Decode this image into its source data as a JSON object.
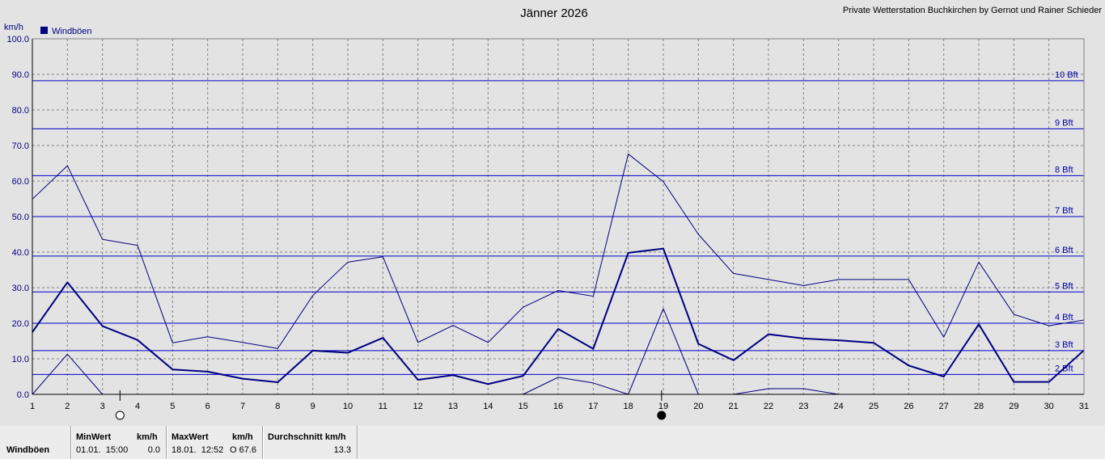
{
  "chart_data": {
    "type": "line",
    "title": "Jänner 2026",
    "subtitle": "Private Wetterstation Buchkirchen by Gernot und Rainer Schieder",
    "ylabel": "km/h",
    "xlabel": "",
    "ylim": [
      0,
      100
    ],
    "xlim": [
      1,
      31
    ],
    "grid": true,
    "legend": "top-left",
    "x": [
      1,
      2,
      3,
      4,
      5,
      6,
      7,
      8,
      9,
      10,
      11,
      12,
      13,
      14,
      15,
      16,
      17,
      18,
      19,
      20,
      21,
      22,
      23,
      24,
      25,
      26,
      27,
      28,
      29,
      30,
      31
    ],
    "x_ticks": [
      "1",
      "2",
      "3",
      "4",
      "5",
      "6",
      "7",
      "8",
      "9",
      "10",
      "11",
      "12",
      "13",
      "14",
      "15",
      "16",
      "17",
      "18",
      "19",
      "20",
      "21",
      "22",
      "23",
      "24",
      "25",
      "26",
      "27",
      "28",
      "29",
      "30",
      "31"
    ],
    "y_ticks": [
      "0.0",
      "10.0",
      "20.0",
      "30.0",
      "40.0",
      "50.0",
      "60.0",
      "70.0",
      "80.0",
      "90.0",
      "100.0"
    ],
    "series": [
      {
        "name": "Windböen",
        "role": "average",
        "color": "#000080",
        "values": [
          17.5,
          31.5,
          19.2,
          15.3,
          7.0,
          6.4,
          4.4,
          3.4,
          12.3,
          11.7,
          15.9,
          4.1,
          5.4,
          2.9,
          5.2,
          18.4,
          12.8,
          39.8,
          41.0,
          14.2,
          9.6,
          16.9,
          15.7,
          15.2,
          14.5,
          8.1,
          5.0,
          19.7,
          3.5,
          3.5,
          12.4
        ]
      },
      {
        "name": "",
        "role": "maximum",
        "color": "#000080",
        "values": [
          54.9,
          64.3,
          43.6,
          41.9,
          14.5,
          16.2,
          14.6,
          12.9,
          27.8,
          37.2,
          38.7,
          14.6,
          19.4,
          14.6,
          24.5,
          29.2,
          27.6,
          67.6,
          59.8,
          45.0,
          34.0,
          32.3,
          30.6,
          32.3,
          32.3,
          32.3,
          16.1,
          37.2,
          22.5,
          19.3,
          20.9
        ]
      },
      {
        "name": "",
        "role": "minimum",
        "color": "#000080",
        "values": [
          0.0,
          11.3,
          0.0,
          0.0,
          0.0,
          0.0,
          0.0,
          0.0,
          0.0,
          0.0,
          0.0,
          0.0,
          0.0,
          0.0,
          0.0,
          4.8,
          3.2,
          0.0,
          24.1,
          0.0,
          0.0,
          1.6,
          1.6,
          0.0,
          0.0,
          0.0,
          0.0,
          0.0,
          0.0,
          0.0,
          0.0
        ]
      }
    ],
    "beaufort_lines": [
      {
        "label": "2 Bft",
        "value": 5.6
      },
      {
        "label": "3 Bft",
        "value": 12.3
      },
      {
        "label": "4 Bft",
        "value": 20.0
      },
      {
        "label": "5 Bft",
        "value": 28.8
      },
      {
        "label": "6 Bft",
        "value": 38.9
      },
      {
        "label": "7 Bft",
        "value": 50.0
      },
      {
        "label": "8 Bft",
        "value": 61.5
      },
      {
        "label": "9 Bft",
        "value": 74.7
      },
      {
        "label": "10 Bft",
        "value": 88.2
      }
    ],
    "moon_phases": [
      {
        "phase": "full-moon",
        "x": 3.5
      },
      {
        "phase": "new-moon",
        "x": 18.95
      }
    ]
  },
  "stats": {
    "row_label": "Windböen",
    "min_header": "MinWert",
    "min_unit": "km/h",
    "min_datetime": "01.01.  15:00",
    "min_value": "0.0",
    "max_header": "MaxWert",
    "max_unit": "km/h",
    "max_datetime": "18.01.  12:52",
    "max_dir": "O",
    "max_value": "67.6",
    "avg_header": "Durchschnitt km/h",
    "avg_value": "13.3"
  },
  "colors": {
    "background": "#e3e3e3",
    "plot_background": "#e3e3e3",
    "series": "#000080",
    "beaufort": "#0000c8",
    "grid": "#808080"
  }
}
